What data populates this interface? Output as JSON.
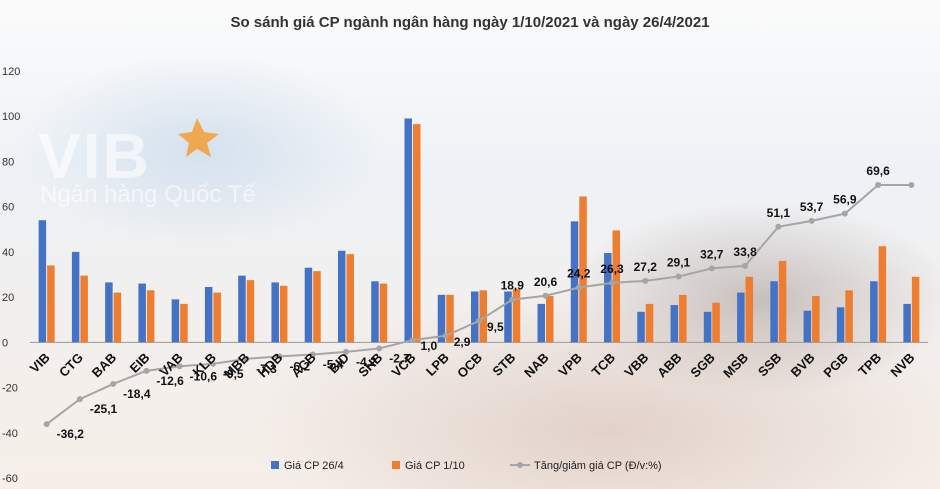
{
  "chart_data": {
    "type": "bar",
    "title": "So sánh giá CP ngành ngân hàng ngày 1/10/2021 và ngày 26/4/2021",
    "categories": [
      "VIB",
      "CTG",
      "BAB",
      "EIB",
      "VAB",
      "KLB",
      "MBB",
      "HDB",
      "ACB",
      "BID",
      "SHB",
      "VCB",
      "LPB",
      "OCB",
      "STB",
      "NAB",
      "VPB",
      "TCB",
      "VBB",
      "ABB",
      "SGB",
      "MSB",
      "SSB",
      "BVB",
      "PGB",
      "TPB",
      "NVB"
    ],
    "ylim": [
      -60,
      120
    ],
    "yticks": [
      -60,
      -40,
      -20,
      0,
      20,
      40,
      60,
      80,
      100,
      120
    ],
    "grid": false,
    "legend_position": "bottom",
    "series": [
      {
        "name": "Giá CP 26/4",
        "type": "bar",
        "color": "#4472C4",
        "values": [
          54,
          40,
          26.5,
          26,
          19,
          24.5,
          29.5,
          26.5,
          33,
          40.5,
          27,
          99,
          21,
          22.5,
          22.5,
          17,
          53.5,
          39.5,
          13.5,
          16.5,
          13.5,
          22,
          27,
          14,
          15.5,
          27,
          17
        ]
      },
      {
        "name": "Giá CP 1/10",
        "type": "bar",
        "color": "#ED7D31",
        "values": [
          34,
          29.5,
          22,
          23,
          17,
          22,
          27.5,
          25,
          31.5,
          39,
          26,
          96.5,
          21,
          23,
          23.5,
          20.5,
          64.5,
          49.5,
          17,
          21,
          17.5,
          29,
          36,
          20.5,
          23,
          42.5,
          29
        ]
      },
      {
        "name": "Tăng/giảm giá CP (Đ/v:%)",
        "type": "line",
        "color": "#A5A5A5",
        "values": [
          -36.2,
          -25.1,
          -18.4,
          -12.6,
          -10.6,
          -9.5,
          -7.3,
          -6.2,
          -5.4,
          -4.2,
          -2.7,
          1.0,
          2.9,
          9.5,
          18.9,
          20.6,
          24.2,
          26.3,
          27.2,
          29.1,
          32.7,
          33.8,
          51.1,
          53.7,
          56.9,
          69.6,
          69.6
        ],
        "labels": [
          "-36,2",
          "-25,1",
          "-18,4",
          "-12,6",
          "-10,6",
          "-9,5",
          "-7,3",
          "-6,2",
          "-5,4",
          "-4,2",
          "-2,7",
          "1,0",
          "2,9",
          "9,5",
          "18,9",
          "20,6",
          "24,2",
          "26,3",
          "27,2",
          "29,1",
          "32,7",
          "33,8",
          "51,1",
          "53,7",
          "56,9",
          "69,6",
          ""
        ]
      }
    ]
  },
  "background": {
    "logo_text": "VIB",
    "logo_subtext": "Ngân hàng Quốc Tế"
  },
  "colors": {
    "bar1": "#4472C4",
    "bar2": "#ED7D31",
    "line": "#A5A5A5",
    "logo_star": "#F7941D"
  }
}
